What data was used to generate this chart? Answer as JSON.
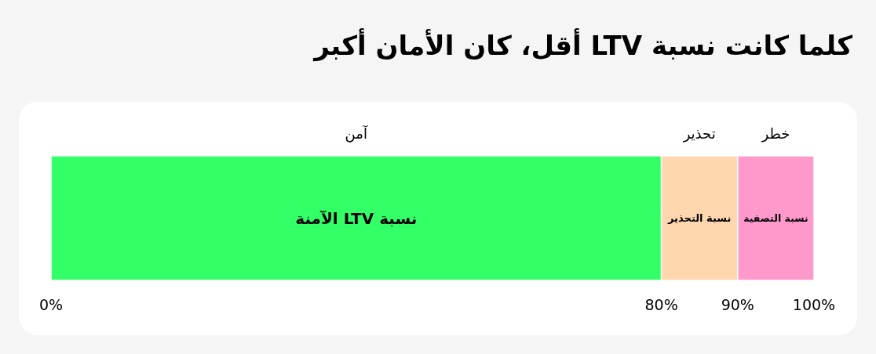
{
  "chart_data": {
    "type": "bar",
    "orientation": "horizontal",
    "stacked": true,
    "title": "كلما كانت نسبة LTV أقل، كان الأمان أكبر",
    "categories": [
      null
    ],
    "series": [
      {
        "name": "نسبة LTV الآمنة",
        "color": "#33ff66",
        "values": [
          80
        ]
      },
      {
        "name": "نسبة التحذير",
        "color": "#ffd6ad",
        "values": [
          10
        ]
      },
      {
        "name": "نسبة التصفية",
        "color": "#ff99cc",
        "values": [
          10
        ]
      }
    ],
    "xlim": [
      0,
      100
    ],
    "xticks": [
      {
        "value": 0,
        "label": "0%"
      },
      {
        "value": 80,
        "label": "80%"
      },
      {
        "value": 90,
        "label": "90%"
      },
      {
        "value": 100,
        "label": "100%"
      }
    ],
    "annotations": [
      "آمن",
      "تحذير",
      "خطر"
    ]
  }
}
